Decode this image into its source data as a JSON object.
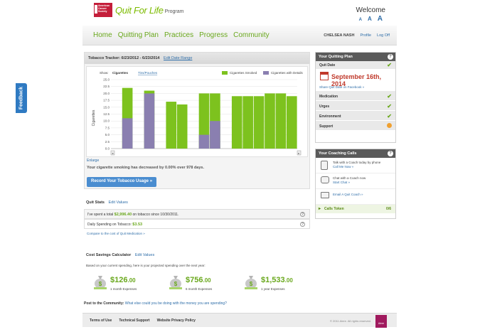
{
  "feedback": "Feedback",
  "logo": {
    "acs": "American Cancer Society",
    "quit": "Quit For Life",
    "program": "Program"
  },
  "welcome": "Welcome",
  "font_sizes": [
    "A",
    "A",
    "A"
  ],
  "nav": [
    "Home",
    "Quitting Plan",
    "Practices",
    "Progress",
    "Community"
  ],
  "user": {
    "name": "CHELSEA NASH",
    "profile": "Profile",
    "logout": "Log Off"
  },
  "tracker": {
    "title": "Tobacco Tracker: 6/23/2012 - 6/23/2014",
    "edit": "Edit Date Range",
    "show_label": "Show:",
    "show_options": [
      "Cigarettes",
      "Tins/Pouches"
    ],
    "enlarge": "Enlarge",
    "decrease_msg": "Your cigarette smoking has decreased by 0.00% over 978 days.",
    "record_button": "Record Your Tobacco Usage »"
  },
  "chart_data": {
    "type": "bar",
    "ylabel": "Cigarettes",
    "ylim": [
      0,
      25
    ],
    "yticks": [
      0.0,
      2.5,
      5.0,
      7.5,
      10.0,
      12.5,
      15.0,
      17.5,
      20.0,
      22.5,
      25.0
    ],
    "legend": [
      "Cigarettes Smoked",
      "Cigarettes with Details"
    ],
    "colors": {
      "smoked": "#7dc21e",
      "details": "#8a7fb0"
    },
    "series": [
      {
        "name": "Cigarettes Smoked",
        "values": [
          0,
          22,
          0,
          21,
          0,
          17,
          16,
          0,
          20,
          20,
          0,
          19,
          19,
          19,
          20,
          20,
          19
        ]
      },
      {
        "name": "Cigarettes with Details",
        "values": [
          0,
          11,
          0,
          20,
          0,
          0,
          0,
          0,
          5,
          10,
          0,
          0,
          0,
          0,
          0,
          0,
          0
        ]
      }
    ]
  },
  "plan": {
    "title": "Your Quitting Plan",
    "quit_date_label": "Quit Date",
    "quit_date": "September 16th, 2014",
    "share": "Share Quit Date on Facebook »",
    "items": [
      "Medication",
      "Urges",
      "Environment",
      "Support"
    ]
  },
  "coaching": {
    "title": "Your Coaching Calls",
    "call_text": "Talk with a Coach today by phone",
    "call_link": "Call Me Now »",
    "chat_text": "Chat with a Coach now",
    "chat_link": "Start Chat »",
    "email_link": "Email A Quit Coach »",
    "tokens_label": "Calls Token",
    "tokens_value": "0/6"
  },
  "quit_stats": {
    "title": "Quit Stats",
    "edit": "Edit Values",
    "spent_pre": "I've spent a total",
    "spent_amount": "$2,996.40",
    "spent_post": "on tobacco since 10/30/2011.",
    "daily_label": "Daily Spending on Tobacco:",
    "daily_amount": "$3.53",
    "compare": "Compare to the cost of Quit Medication »"
  },
  "savings": {
    "title": "Cost Savings Calculator",
    "edit": "Edit Values",
    "note": "Based on your current spending, here is your projected spending over the next year:",
    "items": [
      {
        "amount": "$126",
        "cents": ".00",
        "label": "1 month Expenses"
      },
      {
        "amount": "$756",
        "cents": ".00",
        "label": "6 month Expenses"
      },
      {
        "amount": "$1,533",
        "cents": ".00",
        "label": "1 year Expenses"
      }
    ]
  },
  "post": {
    "label": "Post to the Community:",
    "link": "What else could you be doing with the money you are spending?"
  },
  "footer": {
    "links": [
      "Terms of Use",
      "Technical Support",
      "Website Privacy Policy"
    ],
    "copyright": "© 2011 Alere. All rights reserved.",
    "alere": "Alere"
  }
}
